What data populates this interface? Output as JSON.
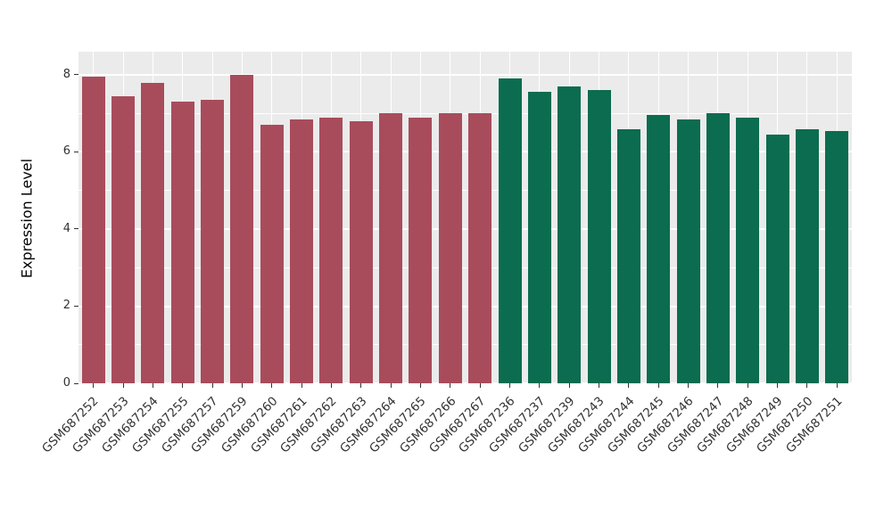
{
  "chart_data": {
    "type": "bar",
    "title": "",
    "xlabel": "",
    "ylabel": "Expression Level",
    "ylim": [
      0,
      8.6
    ],
    "ytick_values": [
      0,
      2,
      4,
      6,
      8
    ],
    "ytick_labels": [
      "0",
      "2",
      "4",
      "6",
      "8"
    ],
    "minor_tick_values": [
      1,
      3,
      5,
      7
    ],
    "background_color": "#EBEBEB",
    "grid_color": "#FFFFFF",
    "legend": "none",
    "series": [
      {
        "name": "group-red",
        "color": "#A84C5C",
        "categories": [
          "GSM687252",
          "GSM687253",
          "GSM687254",
          "GSM687255",
          "GSM687257",
          "GSM687259",
          "GSM687260",
          "GSM687261",
          "GSM687262",
          "GSM687263",
          "GSM687264",
          "GSM687265",
          "GSM687266",
          "GSM687267"
        ],
        "values": [
          7.95,
          7.45,
          7.8,
          7.3,
          7.35,
          8.0,
          6.7,
          6.85,
          6.9,
          6.8,
          7.0,
          6.9,
          7.0,
          7.0
        ]
      },
      {
        "name": "group-green",
        "color": "#0B6C4F",
        "categories": [
          "GSM687236",
          "GSM687237",
          "GSM687239",
          "GSM687243",
          "GSM687244",
          "GSM687245",
          "GSM687246",
          "GSM687247",
          "GSM687248",
          "GSM687249",
          "GSM687250",
          "GSM687251"
        ],
        "values": [
          7.9,
          7.55,
          7.7,
          7.6,
          6.6,
          6.95,
          6.85,
          7.0,
          6.9,
          6.45,
          6.6,
          6.55
        ]
      }
    ]
  }
}
